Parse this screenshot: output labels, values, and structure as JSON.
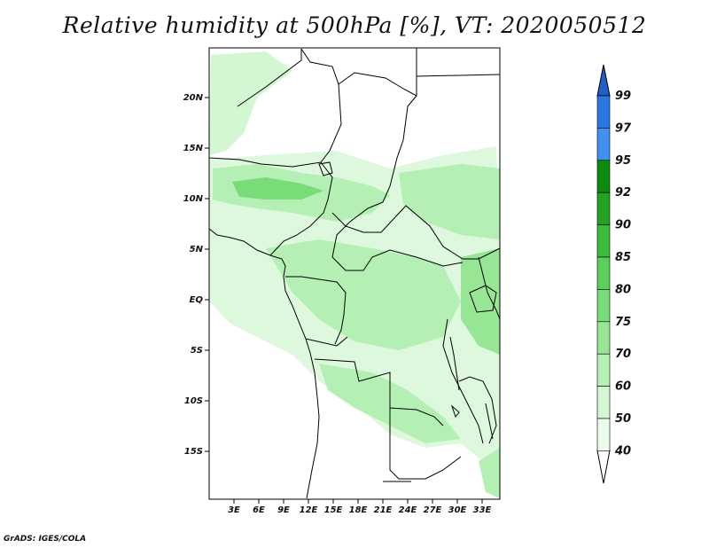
{
  "title": "Relative humidity at 500hPa [%], VT: 2020050512",
  "credit": "GrADS: IGES/COLA",
  "map": {
    "lat_labels": [
      "20N",
      "15N",
      "10N",
      "5N",
      "EQ",
      "5S",
      "10S",
      "15S"
    ],
    "lon_labels": [
      "3E",
      "6E",
      "9E",
      "12E",
      "15E",
      "18E",
      "21E",
      "24E",
      "27E",
      "30E",
      "33E"
    ]
  },
  "colorbar": {
    "levels": [
      "99",
      "97",
      "95",
      "92",
      "90",
      "85",
      "80",
      "75",
      "70",
      "60",
      "50",
      "40"
    ],
    "colors": [
      "#1e60c8",
      "#2878e0",
      "#4090ee",
      "#0e8c0e",
      "#22a422",
      "#3cbc3c",
      "#5ad05a",
      "#78dc78",
      "#96e696",
      "#b4efb4",
      "#d2f7d2",
      "#ecfdec"
    ]
  }
}
